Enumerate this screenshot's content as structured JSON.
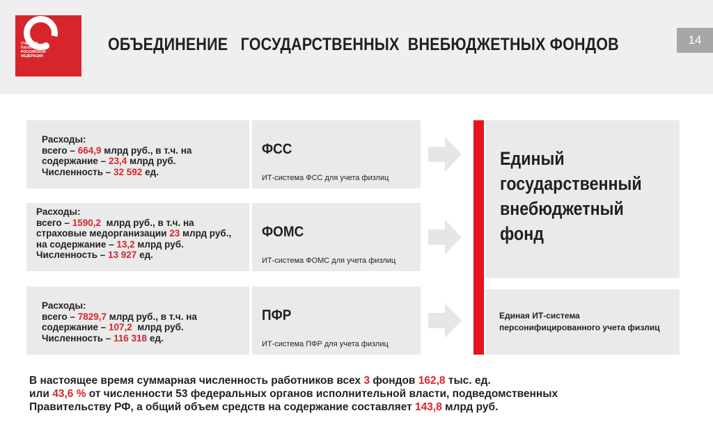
{
  "header": {
    "logo_text": [
      "СЧЕТНАЯ",
      "ПАЛАТА",
      "РОССИЙСКОЙ",
      "ФЕДЕРАЦИИ"
    ],
    "title": "ОБЪЕДИНЕНИЕ   ГОСУДАРСТВЕННЫХ  ВНЕБЮДЖЕТНЫХ ФОНДОВ",
    "page_number": "14"
  },
  "funds": [
    {
      "details": [
        [
          "Расходы:"
        ],
        [
          "всего – ",
          "664,9",
          " млрд руб., в т.ч. на"
        ],
        [
          "содержание – ",
          "23,4",
          " млрд руб."
        ],
        [
          "Численность – ",
          "32 592",
          " ед."
        ]
      ],
      "name": "ФСС",
      "it_system": "ИТ-система ФСС для учета физлиц"
    },
    {
      "details": [
        [
          "Расходы:"
        ],
        [
          "всего – ",
          "1590,2",
          "  млрд руб., в т.ч. на"
        ],
        [
          "страховые медорганизации ",
          "23",
          " млрд руб.,"
        ],
        [
          "на содержание – ",
          "13,2",
          " млрд руб."
        ],
        [
          "Численность – ",
          "13 927",
          " ед."
        ]
      ],
      "name": "ФОМС",
      "it_system": "ИТ-система ФОМС для учета физлиц"
    },
    {
      "details": [
        [
          "Расходы:"
        ],
        [
          "всего – ",
          "7829,7",
          " млрд руб., в т.ч. на"
        ],
        [
          "содержание – ",
          "107,2",
          "  млрд руб."
        ],
        [
          "Численность – ",
          "116 318",
          " ед."
        ]
      ],
      "name": "ПФР",
      "it_system": "ИТ-система ПФР для учета физлиц"
    }
  ],
  "target": {
    "title": [
      "Единый",
      "государственный",
      "внебюджетный",
      "фонд"
    ],
    "it_system": [
      "Единая ИТ-система",
      "персонифицированного учета физлиц"
    ]
  },
  "summary": [
    [
      "В настоящее время суммарная численность работников всех ",
      "3",
      " фондов ",
      "162,8",
      " тыс. ед."
    ],
    [
      "или ",
      "43,6 %",
      " от численности 53 федеральных органов исполнительной власти, подведомственных"
    ],
    [
      "Правительству РФ, а общий объем средств на содержание составляет ",
      "143,8",
      " млрд руб."
    ]
  ]
}
